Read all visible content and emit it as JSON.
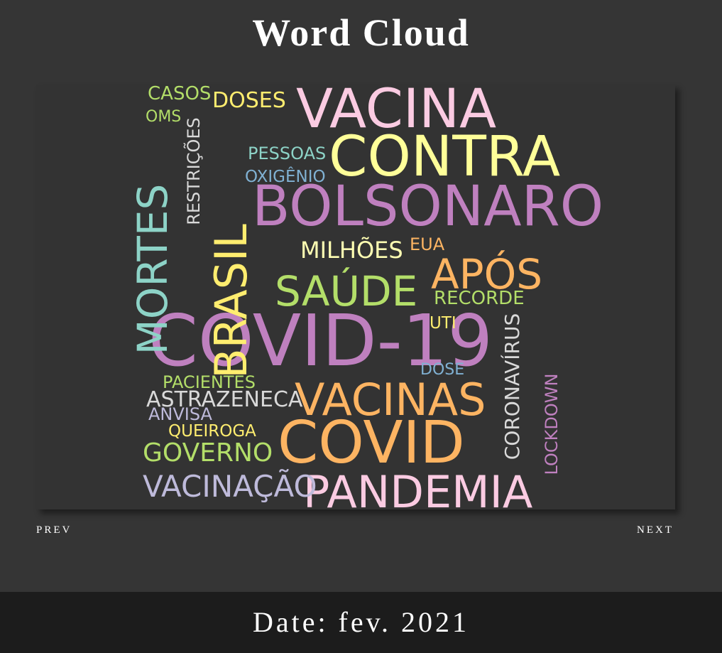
{
  "page": {
    "title": "Word Cloud"
  },
  "navigation": {
    "prev_label": "PREV",
    "next_label": "NEXT"
  },
  "footer": {
    "date_text": "Date: fev. 2021"
  },
  "colors": {
    "background": "#353535",
    "panel": "#333333",
    "footer": "#1c1c1c",
    "text": "#ffffff"
  },
  "word_cloud": {
    "words": [
      {
        "text": "COVID-19",
        "color": "#bf80bf",
        "vertical": false
      },
      {
        "text": "BOLSONARO",
        "color": "#bf80bf",
        "vertical": false
      },
      {
        "text": "CONTRA",
        "color": "#ffff99",
        "vertical": false
      },
      {
        "text": "VACINA",
        "color": "#fbcbe2",
        "vertical": false
      },
      {
        "text": "COVID",
        "color": "#fdb462",
        "vertical": false
      },
      {
        "text": "VACINAS",
        "color": "#fdb462",
        "vertical": false
      },
      {
        "text": "PANDEMIA",
        "color": "#fbcbe2",
        "vertical": false
      },
      {
        "text": "BRASIL",
        "color": "#ffed6f",
        "vertical": true
      },
      {
        "text": "MORTES",
        "color": "#8dd3c7",
        "vertical": true
      },
      {
        "text": "SAÚDE",
        "color": "#b3de69",
        "vertical": false
      },
      {
        "text": "APÓS",
        "color": "#fdb462",
        "vertical": false
      },
      {
        "text": "VACINAÇÃO",
        "color": "#bebada",
        "vertical": false
      },
      {
        "text": "GOVERNO",
        "color": "#b3de69",
        "vertical": false
      },
      {
        "text": "MILHÕES",
        "color": "#ffffb3",
        "vertical": false
      },
      {
        "text": "ASTRAZENECA",
        "color": "#d9d9d9",
        "vertical": false
      },
      {
        "text": "DOSES",
        "color": "#ffed6f",
        "vertical": false
      },
      {
        "text": "CASOS",
        "color": "#b3de69",
        "vertical": false
      },
      {
        "text": "RECORDE",
        "color": "#b3de69",
        "vertical": false
      },
      {
        "text": "CORONAVÍRUS",
        "color": "#d9d9d9",
        "vertical": true
      },
      {
        "text": "RESTRIÇÕES",
        "color": "#d9d9d9",
        "vertical": true
      },
      {
        "text": "PESSOAS",
        "color": "#8dd3c7",
        "vertical": false
      },
      {
        "text": "LOCKDOWN",
        "color": "#bf80bf",
        "vertical": true
      },
      {
        "text": "PACIENTES",
        "color": "#b3de69",
        "vertical": false
      },
      {
        "text": "ANVISA",
        "color": "#bebada",
        "vertical": false
      },
      {
        "text": "QUEIROGA",
        "color": "#ffed6f",
        "vertical": false
      },
      {
        "text": "OXIGÊNIO",
        "color": "#80b1d3",
        "vertical": false
      },
      {
        "text": "OMS",
        "color": "#b3de69",
        "vertical": false
      },
      {
        "text": "EUA",
        "color": "#fdb462",
        "vertical": false
      },
      {
        "text": "UTI",
        "color": "#ffed6f",
        "vertical": false
      },
      {
        "text": "DOSE",
        "color": "#80b1d3",
        "vertical": false
      }
    ]
  }
}
